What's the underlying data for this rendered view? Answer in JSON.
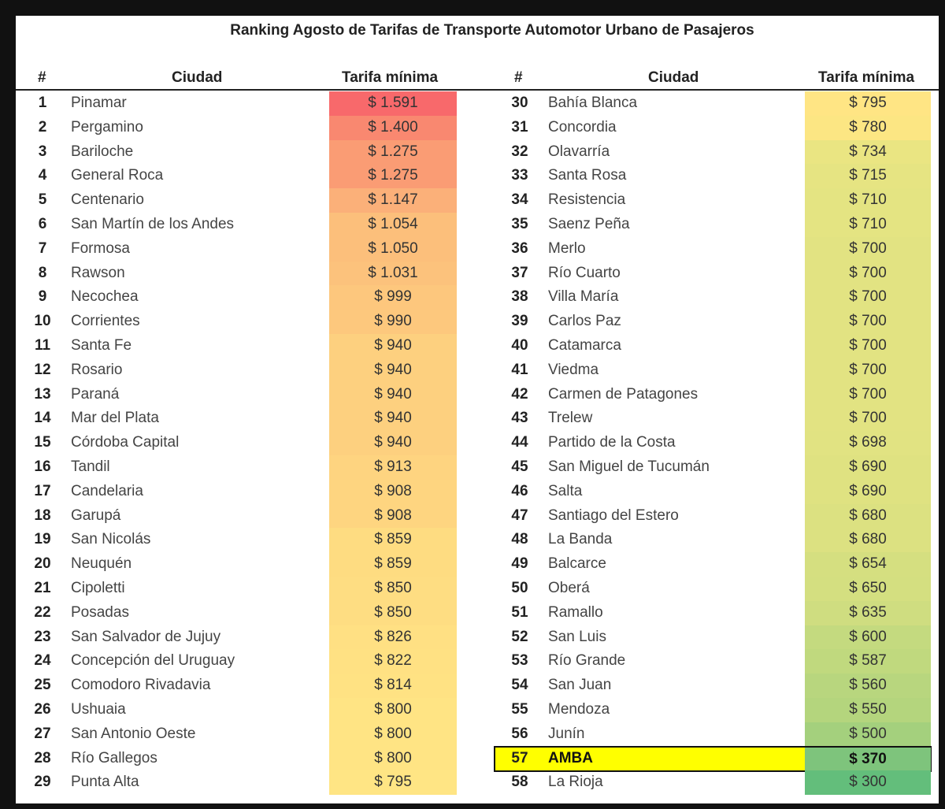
{
  "title": "Ranking Agosto de Tarifas de Transporte Automotor Urbano de Pasajeros",
  "headers": {
    "rank": "#",
    "city": "Ciudad",
    "fare": "Tarifa mínima"
  },
  "highlight": {
    "rank": 57,
    "city": "AMBA",
    "fare": "$ 370",
    "row_color": "#ffff00"
  },
  "color_scale": {
    "high": "#f8696b",
    "mid": "#ffe084",
    "low": "#63be7b"
  },
  "left_table": [
    {
      "rank": "1",
      "city": "Pinamar",
      "fare": "$ 1.591",
      "color": "#f8696b"
    },
    {
      "rank": "2",
      "city": "Pergamino",
      "fare": "$ 1.400",
      "color": "#f98870"
    },
    {
      "rank": "3",
      "city": "Bariloche",
      "fare": "$ 1.275",
      "color": "#fa9c74"
    },
    {
      "rank": "4",
      "city": "General Roca",
      "fare": "$ 1.275",
      "color": "#fa9c74"
    },
    {
      "rank": "5",
      "city": "Centenario",
      "fare": "$ 1.147",
      "color": "#fbb079"
    },
    {
      "rank": "6",
      "city": "San Martín de los Andes",
      "fare": "$ 1.054",
      "color": "#fcbf7b"
    },
    {
      "rank": "7",
      "city": "Formosa",
      "fare": "$ 1.050",
      "color": "#fcbf7b"
    },
    {
      "rank": "8",
      "city": "Rawson",
      "fare": "$ 1.031",
      "color": "#fcc27c"
    },
    {
      "rank": "9",
      "city": "Necochea",
      "fare": "$ 999",
      "color": "#fdc77d"
    },
    {
      "rank": "10",
      "city": "Corrientes",
      "fare": "$ 990",
      "color": "#fdc87d"
    },
    {
      "rank": "11",
      "city": "Santa Fe",
      "fare": "$ 940",
      "color": "#fdd07f"
    },
    {
      "rank": "12",
      "city": "Rosario",
      "fare": "$ 940",
      "color": "#fdd07f"
    },
    {
      "rank": "13",
      "city": "Paraná",
      "fare": "$ 940",
      "color": "#fdd07f"
    },
    {
      "rank": "14",
      "city": "Mar del Plata",
      "fare": "$ 940",
      "color": "#fdd07f"
    },
    {
      "rank": "15",
      "city": "Córdoba Capital",
      "fare": "$ 940",
      "color": "#fdd07f"
    },
    {
      "rank": "16",
      "city": "Tandil",
      "fare": "$ 913",
      "color": "#fed480"
    },
    {
      "rank": "17",
      "city": "Candelaria",
      "fare": "$ 908",
      "color": "#fed580"
    },
    {
      "rank": "18",
      "city": "Garupá",
      "fare": "$ 908",
      "color": "#fed580"
    },
    {
      "rank": "19",
      "city": "San Nicolás",
      "fare": "$ 859",
      "color": "#fedc81"
    },
    {
      "rank": "20",
      "city": "Neuquén",
      "fare": "$ 859",
      "color": "#fedc81"
    },
    {
      "rank": "21",
      "city": "Cipoletti",
      "fare": "$ 850",
      "color": "#fedd82"
    },
    {
      "rank": "22",
      "city": "Posadas",
      "fare": "$ 850",
      "color": "#fedd82"
    },
    {
      "rank": "23",
      "city": "San Salvador de Jujuy",
      "fare": "$ 826",
      "color": "#ffe083"
    },
    {
      "rank": "24",
      "city": "Concepción del Uruguay",
      "fare": "$ 822",
      "color": "#ffe183"
    },
    {
      "rank": "25",
      "city": "Comodoro Rivadavia",
      "fare": "$ 814",
      "color": "#ffe283"
    },
    {
      "rank": "26",
      "city": "Ushuaia",
      "fare": "$ 800",
      "color": "#ffe484"
    },
    {
      "rank": "27",
      "city": "San Antonio Oeste",
      "fare": "$ 800",
      "color": "#ffe484"
    },
    {
      "rank": "28",
      "city": "Río Gallegos",
      "fare": "$ 800",
      "color": "#ffe484"
    },
    {
      "rank": "29",
      "city": "Punta Alta",
      "fare": "$ 795",
      "color": "#ffe584"
    }
  ],
  "right_table": [
    {
      "rank": "30",
      "city": "Bahía Blanca",
      "fare": "$ 795",
      "color": "#ffe584"
    },
    {
      "rank": "31",
      "city": "Concordia",
      "fare": "$ 780",
      "color": "#fce683"
    },
    {
      "rank": "32",
      "city": "Olavarría",
      "fare": "$ 734",
      "color": "#eae582"
    },
    {
      "rank": "33",
      "city": "Santa Rosa",
      "fare": "$ 715",
      "color": "#e6e482"
    },
    {
      "rank": "34",
      "city": "Resistencia",
      "fare": "$ 710",
      "color": "#e4e482"
    },
    {
      "rank": "35",
      "city": "Saenz Peña",
      "fare": "$ 710",
      "color": "#e4e482"
    },
    {
      "rank": "36",
      "city": "Merlo",
      "fare": "$ 700",
      "color": "#e2e382"
    },
    {
      "rank": "37",
      "city": "Río Cuarto",
      "fare": "$ 700",
      "color": "#e2e382"
    },
    {
      "rank": "38",
      "city": "Villa María",
      "fare": "$ 700",
      "color": "#e2e382"
    },
    {
      "rank": "39",
      "city": "Carlos Paz",
      "fare": "$ 700",
      "color": "#e2e382"
    },
    {
      "rank": "40",
      "city": "Catamarca",
      "fare": "$ 700",
      "color": "#e2e382"
    },
    {
      "rank": "41",
      "city": "Viedma",
      "fare": "$ 700",
      "color": "#e2e382"
    },
    {
      "rank": "42",
      "city": "Carmen de Patagones",
      "fare": "$ 700",
      "color": "#e2e382"
    },
    {
      "rank": "43",
      "city": "Trelew",
      "fare": "$ 700",
      "color": "#e2e382"
    },
    {
      "rank": "44",
      "city": "Partido de la Costa",
      "fare": "$ 698",
      "color": "#e1e382"
    },
    {
      "rank": "45",
      "city": "San Miguel de Tucumán",
      "fare": "$ 690",
      "color": "#dfe281"
    },
    {
      "rank": "46",
      "city": "Salta",
      "fare": "$ 690",
      "color": "#dfe281"
    },
    {
      "rank": "47",
      "city": "Santiago del Estero",
      "fare": "$ 680",
      "color": "#dce181"
    },
    {
      "rank": "48",
      "city": "La Banda",
      "fare": "$ 680",
      "color": "#dce181"
    },
    {
      "rank": "49",
      "city": "Balcarce",
      "fare": "$ 654",
      "color": "#d5df80"
    },
    {
      "rank": "50",
      "city": "Oberá",
      "fare": "$ 650",
      "color": "#d4df80"
    },
    {
      "rank": "51",
      "city": "Ramallo",
      "fare": "$ 635",
      "color": "#cfdd80"
    },
    {
      "rank": "52",
      "city": "San Luis",
      "fare": "$ 600",
      "color": "#c4da7f"
    },
    {
      "rank": "53",
      "city": "Río Grande",
      "fare": "$ 587",
      "color": "#c0d97e"
    },
    {
      "rank": "54",
      "city": "San Juan",
      "fare": "$ 560",
      "color": "#b8d67e"
    },
    {
      "rank": "55",
      "city": "Mendoza",
      "fare": "$ 550",
      "color": "#b4d57d"
    },
    {
      "rank": "56",
      "city": "Junín",
      "fare": "$ 500",
      "color": "#a4d07d"
    },
    {
      "rank": "57",
      "city": "AMBA",
      "fare": "$ 370",
      "color": "#7ec47c"
    },
    {
      "rank": "58",
      "city": "La Rioja",
      "fare": "$ 300",
      "color": "#63be7b"
    }
  ],
  "chart_data": {
    "type": "table",
    "title": "Ranking Agosto de Tarifas de Transporte Automotor Urbano de Pasajeros",
    "columns": [
      "#",
      "Ciudad",
      "Tarifa mínima"
    ],
    "categories": [
      "Pinamar",
      "Pergamino",
      "Bariloche",
      "General Roca",
      "Centenario",
      "San Martín de los Andes",
      "Formosa",
      "Rawson",
      "Necochea",
      "Corrientes",
      "Santa Fe",
      "Rosario",
      "Paraná",
      "Mar del Plata",
      "Córdoba Capital",
      "Tandil",
      "Candelaria",
      "Garupá",
      "San Nicolás",
      "Neuquén",
      "Cipoletti",
      "Posadas",
      "San Salvador de Jujuy",
      "Concepción del Uruguay",
      "Comodoro Rivadavia",
      "Ushuaia",
      "San Antonio Oeste",
      "Río Gallegos",
      "Punta Alta",
      "Bahía Blanca",
      "Concordia",
      "Olavarría",
      "Santa Rosa",
      "Resistencia",
      "Saenz Peña",
      "Merlo",
      "Río Cuarto",
      "Villa María",
      "Carlos Paz",
      "Catamarca",
      "Viedma",
      "Carmen de Patagones",
      "Trelew",
      "Partido de la Costa",
      "San Miguel de Tucumán",
      "Salta",
      "Santiago del Estero",
      "La Banda",
      "Balcarce",
      "Oberá",
      "Ramallo",
      "San Luis",
      "Río Grande",
      "San Juan",
      "Mendoza",
      "Junín",
      "AMBA",
      "La Rioja"
    ],
    "values": [
      1591,
      1400,
      1275,
      1275,
      1147,
      1054,
      1050,
      1031,
      999,
      990,
      940,
      940,
      940,
      940,
      940,
      913,
      908,
      908,
      859,
      859,
      850,
      850,
      826,
      822,
      814,
      800,
      800,
      800,
      795,
      795,
      780,
      734,
      715,
      710,
      710,
      700,
      700,
      700,
      700,
      700,
      700,
      700,
      700,
      698,
      690,
      690,
      680,
      680,
      654,
      650,
      635,
      600,
      587,
      560,
      550,
      500,
      370,
      300
    ],
    "unit": "ARS",
    "highlighted": "AMBA",
    "color_scale": "red (high) → yellow → green (low)"
  }
}
